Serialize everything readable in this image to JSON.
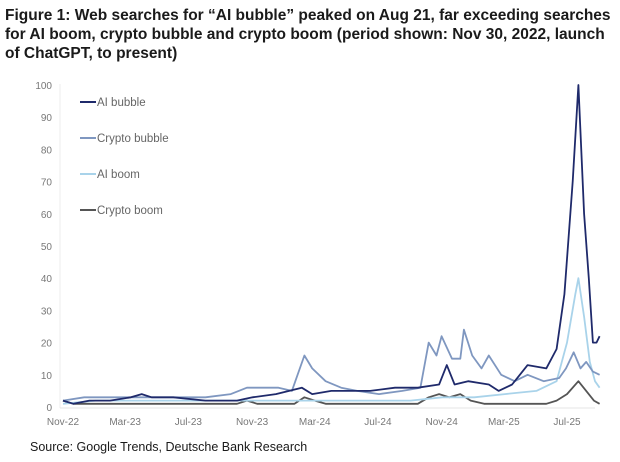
{
  "chart_data": {
    "type": "line",
    "title": "Figure 1: Web searches for “AI bubble” peaked on Aug 21, far exceeding searches for AI boom, crypto bubble and crypto boom (period shown: Nov 30, 2022, launch of ChatGPT, to present)",
    "source": "Source: Google Trends, Deutsche Bank Research",
    "xlabel": "",
    "ylabel": "",
    "ylim": [
      0,
      100
    ],
    "yticks": [
      "0",
      "10",
      "20",
      "30",
      "40",
      "50",
      "60",
      "70",
      "80",
      "90",
      "100"
    ],
    "xticks": [
      {
        "label": "Nov-22",
        "date": "2022-11-30"
      },
      {
        "label": "Mar-23",
        "date": "2023-03-30"
      },
      {
        "label": "Jul-23",
        "date": "2023-07-30"
      },
      {
        "label": "Nov-23",
        "date": "2023-11-30"
      },
      {
        "label": "Mar-24",
        "date": "2024-03-30"
      },
      {
        "label": "Jul-24",
        "date": "2024-07-30"
      },
      {
        "label": "Nov-24",
        "date": "2024-11-30"
      },
      {
        "label": "Mar-25",
        "date": "2025-03-30"
      },
      {
        "label": "Jul-25",
        "date": "2025-07-30"
      }
    ],
    "xlim": [
      "2022-11-30",
      "2025-10-10"
    ],
    "grid": false,
    "legend": "top-left",
    "series": [
      {
        "name": "AI bubble",
        "color": "#1f2a6b",
        "points": [
          [
            "2022-11-30",
            2
          ],
          [
            "2022-12-20",
            1
          ],
          [
            "2023-01-20",
            2
          ],
          [
            "2023-03-01",
            2
          ],
          [
            "2023-04-10",
            3
          ],
          [
            "2023-05-01",
            4
          ],
          [
            "2023-05-20",
            3
          ],
          [
            "2023-07-01",
            3
          ],
          [
            "2023-09-01",
            2
          ],
          [
            "2023-11-01",
            2
          ],
          [
            "2023-12-01",
            3
          ],
          [
            "2024-01-15",
            4
          ],
          [
            "2024-03-05",
            6
          ],
          [
            "2024-03-25",
            4
          ],
          [
            "2024-05-01",
            5
          ],
          [
            "2024-06-01",
            5
          ],
          [
            "2024-07-15",
            5
          ],
          [
            "2024-09-01",
            6
          ],
          [
            "2024-10-15",
            6
          ],
          [
            "2024-11-25",
            7
          ],
          [
            "2024-12-10",
            13
          ],
          [
            "2024-12-25",
            7
          ],
          [
            "2025-01-20",
            8
          ],
          [
            "2025-03-01",
            7
          ],
          [
            "2025-03-20",
            5
          ],
          [
            "2025-04-15",
            7
          ],
          [
            "2025-05-15",
            13
          ],
          [
            "2025-06-20",
            12
          ],
          [
            "2025-07-10",
            18
          ],
          [
            "2025-07-25",
            35
          ],
          [
            "2025-08-10",
            70
          ],
          [
            "2025-08-21",
            100
          ],
          [
            "2025-09-01",
            60
          ],
          [
            "2025-09-10",
            40
          ],
          [
            "2025-09-18",
            20
          ],
          [
            "2025-09-25",
            20
          ],
          [
            "2025-10-01",
            22
          ]
        ]
      },
      {
        "name": "Crypto bubble",
        "color": "#7f97c0",
        "points": [
          [
            "2022-11-30",
            2
          ],
          [
            "2023-01-10",
            3
          ],
          [
            "2023-03-01",
            3
          ],
          [
            "2023-05-01",
            3
          ],
          [
            "2023-07-01",
            3
          ],
          [
            "2023-09-01",
            3
          ],
          [
            "2023-10-20",
            4
          ],
          [
            "2023-11-20",
            6
          ],
          [
            "2024-01-20",
            6
          ],
          [
            "2024-02-15",
            5
          ],
          [
            "2024-03-10",
            16
          ],
          [
            "2024-03-25",
            12
          ],
          [
            "2024-04-20",
            8
          ],
          [
            "2024-05-20",
            6
          ],
          [
            "2024-06-20",
            5
          ],
          [
            "2024-08-01",
            4
          ],
          [
            "2024-09-15",
            5
          ],
          [
            "2024-10-20",
            6
          ],
          [
            "2024-11-05",
            20
          ],
          [
            "2024-11-20",
            16
          ],
          [
            "2024-11-30",
            22
          ],
          [
            "2024-12-20",
            15
          ],
          [
            "2025-01-05",
            15
          ],
          [
            "2025-01-12",
            24
          ],
          [
            "2025-01-28",
            16
          ],
          [
            "2025-02-15",
            12
          ],
          [
            "2025-03-01",
            16
          ],
          [
            "2025-03-25",
            10
          ],
          [
            "2025-04-20",
            8
          ],
          [
            "2025-05-15",
            10
          ],
          [
            "2025-06-15",
            8
          ],
          [
            "2025-07-15",
            9
          ],
          [
            "2025-07-28",
            12
          ],
          [
            "2025-08-12",
            17
          ],
          [
            "2025-08-25",
            12
          ],
          [
            "2025-09-05",
            14
          ],
          [
            "2025-09-18",
            11
          ],
          [
            "2025-10-01",
            10
          ]
        ]
      },
      {
        "name": "AI boom",
        "color": "#a9d3ea",
        "points": [
          [
            "2022-11-30",
            1
          ],
          [
            "2023-02-01",
            2
          ],
          [
            "2023-06-01",
            2
          ],
          [
            "2023-10-01",
            2
          ],
          [
            "2024-02-01",
            2
          ],
          [
            "2024-06-01",
            2
          ],
          [
            "2024-10-01",
            2
          ],
          [
            "2024-12-01",
            3
          ],
          [
            "2025-02-01",
            3
          ],
          [
            "2025-04-01",
            4
          ],
          [
            "2025-06-01",
            5
          ],
          [
            "2025-07-10",
            8
          ],
          [
            "2025-07-30",
            20
          ],
          [
            "2025-08-15",
            35
          ],
          [
            "2025-08-21",
            40
          ],
          [
            "2025-09-01",
            28
          ],
          [
            "2025-09-12",
            14
          ],
          [
            "2025-09-22",
            8
          ],
          [
            "2025-10-01",
            6
          ]
        ]
      },
      {
        "name": "Crypto boom",
        "color": "#555555",
        "points": [
          [
            "2022-11-30",
            2
          ],
          [
            "2022-12-20",
            1
          ],
          [
            "2023-05-01",
            1
          ],
          [
            "2023-11-01",
            1
          ],
          [
            "2023-11-20",
            2
          ],
          [
            "2023-12-10",
            1
          ],
          [
            "2024-02-20",
            1
          ],
          [
            "2024-03-10",
            3
          ],
          [
            "2024-03-30",
            2
          ],
          [
            "2024-04-20",
            1
          ],
          [
            "2024-10-15",
            1
          ],
          [
            "2024-11-05",
            3
          ],
          [
            "2024-11-25",
            4
          ],
          [
            "2024-12-15",
            3
          ],
          [
            "2025-01-05",
            4
          ],
          [
            "2025-01-25",
            2
          ],
          [
            "2025-02-20",
            1
          ],
          [
            "2025-06-20",
            1
          ],
          [
            "2025-07-10",
            2
          ],
          [
            "2025-07-30",
            4
          ],
          [
            "2025-08-21",
            8
          ],
          [
            "2025-09-05",
            5
          ],
          [
            "2025-09-20",
            2
          ],
          [
            "2025-10-01",
            1
          ]
        ]
      }
    ]
  }
}
